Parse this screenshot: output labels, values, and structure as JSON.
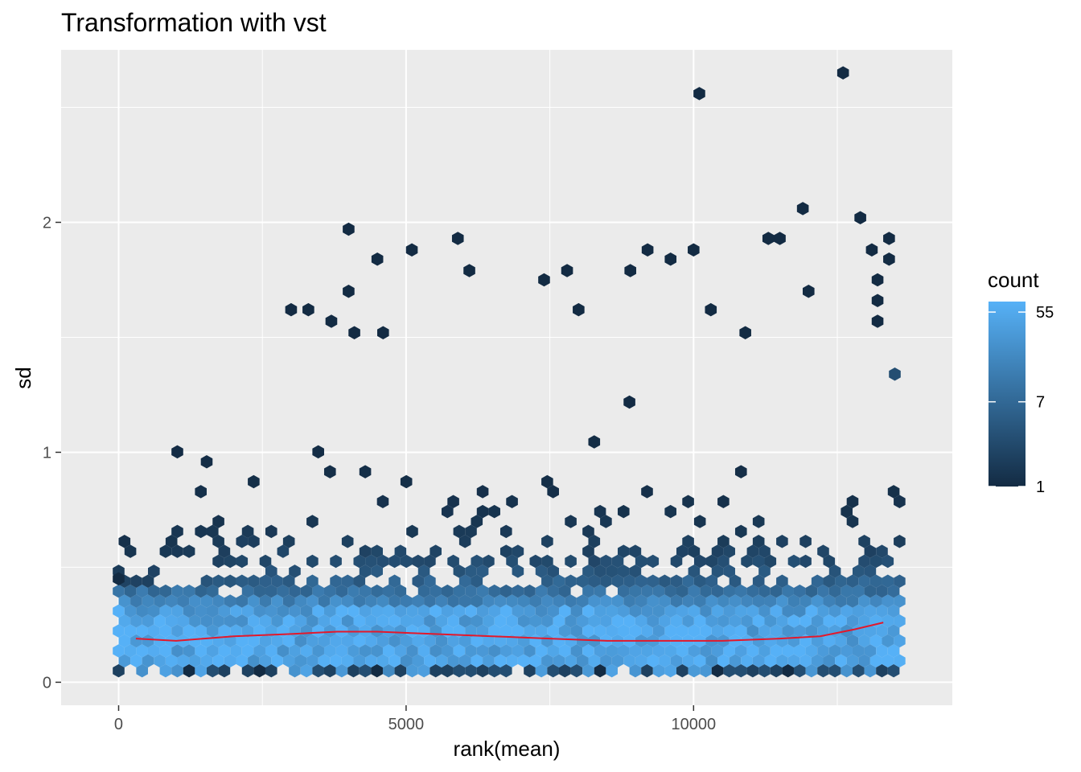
{
  "chart_data": {
    "type": "hexbin",
    "title": "Transformation with vst",
    "xlabel": "rank(mean)",
    "ylabel": "sd",
    "xlim": [
      -1000,
      14500
    ],
    "ylim": [
      -0.1,
      2.75
    ],
    "x_ticks": [
      0,
      5000,
      10000
    ],
    "x_tick_labels": [
      "0",
      "5000",
      "10000"
    ],
    "y_ticks": [
      0,
      1,
      2
    ],
    "y_tick_labels": [
      "0",
      "1",
      "2"
    ],
    "grid": true,
    "legend": {
      "title": "count",
      "position": "right",
      "scale": "log",
      "min": 1,
      "max": 70,
      "labels": [
        55,
        7,
        1
      ],
      "color_low": "#132B43",
      "color_high": "#56B1F7"
    },
    "trend_line": {
      "color": "#e3182b",
      "x": [
        300,
        1000,
        2000,
        3000,
        3800,
        4500,
        5500,
        6500,
        7500,
        8500,
        9500,
        10500,
        11500,
        12200,
        12800,
        13300
      ],
      "y": [
        0.19,
        0.18,
        0.2,
        0.21,
        0.22,
        0.22,
        0.21,
        0.2,
        0.19,
        0.18,
        0.18,
        0.18,
        0.19,
        0.2,
        0.23,
        0.26
      ]
    },
    "bins": [
      {
        "x": 0,
        "y": 0.45,
        "count": 1
      },
      {
        "x": 4000,
        "y": 1.97,
        "count": 1
      },
      {
        "x": 4000,
        "y": 1.7,
        "count": 1
      },
      {
        "x": 5100,
        "y": 1.88,
        "count": 1
      },
      {
        "x": 5900,
        "y": 1.93,
        "count": 1
      },
      {
        "x": 6100,
        "y": 1.79,
        "count": 1
      },
      {
        "x": 4500,
        "y": 1.84,
        "count": 1
      },
      {
        "x": 3000,
        "y": 1.62,
        "count": 1
      },
      {
        "x": 3300,
        "y": 1.62,
        "count": 1
      },
      {
        "x": 3700,
        "y": 1.57,
        "count": 1
      },
      {
        "x": 4100,
        "y": 1.52,
        "count": 1
      },
      {
        "x": 4600,
        "y": 1.52,
        "count": 1
      },
      {
        "x": 7400,
        "y": 1.75,
        "count": 1
      },
      {
        "x": 7800,
        "y": 1.79,
        "count": 1
      },
      {
        "x": 8000,
        "y": 1.62,
        "count": 1
      },
      {
        "x": 8900,
        "y": 1.79,
        "count": 1
      },
      {
        "x": 9200,
        "y": 1.88,
        "count": 1
      },
      {
        "x": 9600,
        "y": 1.84,
        "count": 1
      },
      {
        "x": 10000,
        "y": 1.88,
        "count": 1
      },
      {
        "x": 10100,
        "y": 2.56,
        "count": 1
      },
      {
        "x": 12600,
        "y": 2.65,
        "count": 1
      },
      {
        "x": 11900,
        "y": 2.06,
        "count": 1
      },
      {
        "x": 12900,
        "y": 2.02,
        "count": 1
      },
      {
        "x": 11300,
        "y": 1.93,
        "count": 1
      },
      {
        "x": 11500,
        "y": 1.93,
        "count": 1
      },
      {
        "x": 13400,
        "y": 1.93,
        "count": 1
      },
      {
        "x": 13100,
        "y": 1.88,
        "count": 1
      },
      {
        "x": 13400,
        "y": 1.84,
        "count": 1
      },
      {
        "x": 13200,
        "y": 1.75,
        "count": 1
      },
      {
        "x": 13200,
        "y": 1.66,
        "count": 1
      },
      {
        "x": 12000,
        "y": 1.7,
        "count": 1
      },
      {
        "x": 10300,
        "y": 1.62,
        "count": 1
      },
      {
        "x": 10900,
        "y": 1.52,
        "count": 1
      },
      {
        "x": 13200,
        "y": 1.57,
        "count": 1
      },
      {
        "x": 13500,
        "y": 1.34,
        "count": 3
      }
    ]
  }
}
